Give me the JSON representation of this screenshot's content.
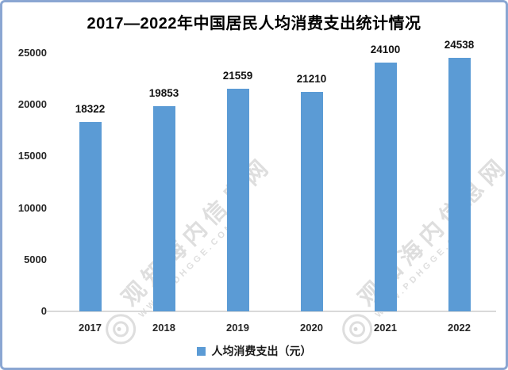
{
  "chart_data": {
    "type": "bar",
    "title": "2017—2022年中国居民人均消费支出统计情况",
    "categories": [
      "2017",
      "2018",
      "2019",
      "2020",
      "2021",
      "2022"
    ],
    "values": [
      18322,
      19853,
      21559,
      21210,
      24100,
      24538
    ],
    "series_name": "人均消费支出（元）",
    "xlabel": "",
    "ylabel": "",
    "ylim": [
      0,
      25000
    ],
    "y_ticks": [
      0,
      5000,
      10000,
      15000,
      20000,
      25000
    ],
    "grid": "off",
    "legend_position": "bottom",
    "data_labels": "above-bars",
    "bar_color": "#5b9bd5"
  },
  "legend": {
    "label": "人均消费支出（元）",
    "marker_color": "#5b9bd5"
  },
  "watermark": {
    "text": "观知海内信息网",
    "subtext": "WWW.PDHGGE.COM",
    "logo": "concentric-circles"
  },
  "frame": {
    "border_color": "#8aa6d2",
    "background_color": "#ffffff",
    "axis_line_color": "#d9d9d9"
  }
}
